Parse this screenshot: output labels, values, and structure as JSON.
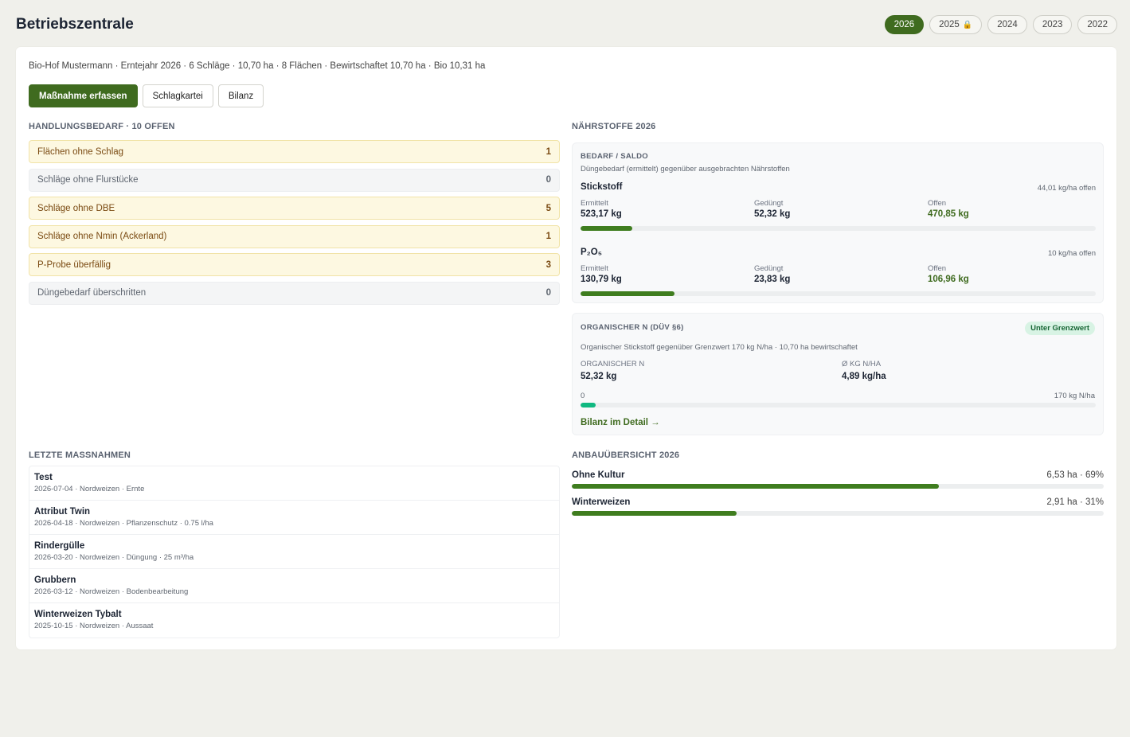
{
  "header": {
    "title": "Betriebszentrale",
    "years": [
      {
        "label": "2026",
        "active": true,
        "locked": false
      },
      {
        "label": "2025",
        "active": false,
        "locked": true
      },
      {
        "label": "2024",
        "active": false,
        "locked": false
      },
      {
        "label": "2023",
        "active": false,
        "locked": false
      },
      {
        "label": "2022",
        "active": false,
        "locked": false
      }
    ],
    "lock_icon": "🔒"
  },
  "summary": "Bio-Hof Mustermann · Erntejahr 2026 · 6 Schläge · 10,70 ha · 8 Flächen · Bewirtschaftet 10,70 ha · Bio 10,31 ha",
  "actions": {
    "primary": "Maßnahme erfassen",
    "schlagkartei": "Schlagkartei",
    "bilanz": "Bilanz"
  },
  "todos": {
    "heading": "HANDLUNGSBEDARF · 10 OFFEN",
    "items": [
      {
        "label": "Flächen ohne Schlag",
        "count": "1",
        "status": "warn"
      },
      {
        "label": "Schläge ohne Flurstücke",
        "count": "0",
        "status": "ok"
      },
      {
        "label": "Schläge ohne DBE",
        "count": "5",
        "status": "warn"
      },
      {
        "label": "Schläge ohne Nmin (Ackerland)",
        "count": "1",
        "status": "warn"
      },
      {
        "label": "P-Probe überfällig",
        "count": "3",
        "status": "warn"
      },
      {
        "label": "Düngebedarf überschritten",
        "count": "0",
        "status": "ok"
      }
    ]
  },
  "nutrients": {
    "heading": "NÄHRSTOFFE 2026",
    "panel_title": "BEDARF / SALDO",
    "panel_sub": "Düngebedarf (ermittelt) gegenüber ausgebrachten Nährstoffen",
    "labels": {
      "ermittelt": "Ermittelt",
      "geduengt": "Gedüngt",
      "offen": "Offen"
    },
    "stickstoff": {
      "name": "Stickstoff",
      "open_rate": "44,01 kg/ha offen",
      "ermittelt": "523,17 kg",
      "geduengt": "52,32 kg",
      "offen": "470,85 kg",
      "progress": 0.1
    },
    "p2o5": {
      "name": "P₂O₅",
      "open_rate": "10 kg/ha offen",
      "ermittelt": "130,79 kg",
      "geduengt": "23,83 kg",
      "offen": "106,96 kg",
      "progress": 0.182
    }
  },
  "organic": {
    "title": "ORGANISCHER N (DÜV §6)",
    "badge": "Unter Grenzwert",
    "sub": "Organischer Stickstoff gegenüber Grenzwert 170 kg N/ha · 10,70 ha bewirtschaftet",
    "col1_label": "ORGANISCHER N",
    "col1_value": "52,32 kg",
    "col2_label": "Ø KG N/HA",
    "col2_value": "4,89 kg/ha",
    "scale_min": "0",
    "scale_max": "170 kg N/ha",
    "progress": 0.029,
    "link": "Bilanz im Detail →"
  },
  "recent": {
    "heading": "LETZTE MASSNAHMEN",
    "items": [
      {
        "title": "Test",
        "detail": "2026-07-04 · Nordweizen · Ernte"
      },
      {
        "title": "Attribut Twin",
        "detail": "2026-04-18 · Nordweizen · Pflanzenschutz · 0.75 l/ha"
      },
      {
        "title": "Rindergülle",
        "detail": "2026-03-20 · Nordweizen · Düngung · 25 m³/ha"
      },
      {
        "title": "Grubbern",
        "detail": "2026-03-12 · Nordweizen · Bodenbearbeitung"
      },
      {
        "title": "Winterweizen Tybalt",
        "detail": "2025-10-15 · Nordweizen · Aussaat"
      }
    ]
  },
  "crops": {
    "heading": "ANBAUÜBERSICHT 2026",
    "items": [
      {
        "name": "Ohne Kultur",
        "value": "6,53 ha · 69%",
        "share": 0.69
      },
      {
        "name": "Winterweizen",
        "value": "2,91 ha · 31%",
        "share": 0.31
      }
    ]
  },
  "colors": {
    "accent": "#3f6b1f",
    "bar_fill": "#3f7d1f",
    "organic_fill": "#10b981",
    "warn_bg": "#fdf8e1"
  }
}
